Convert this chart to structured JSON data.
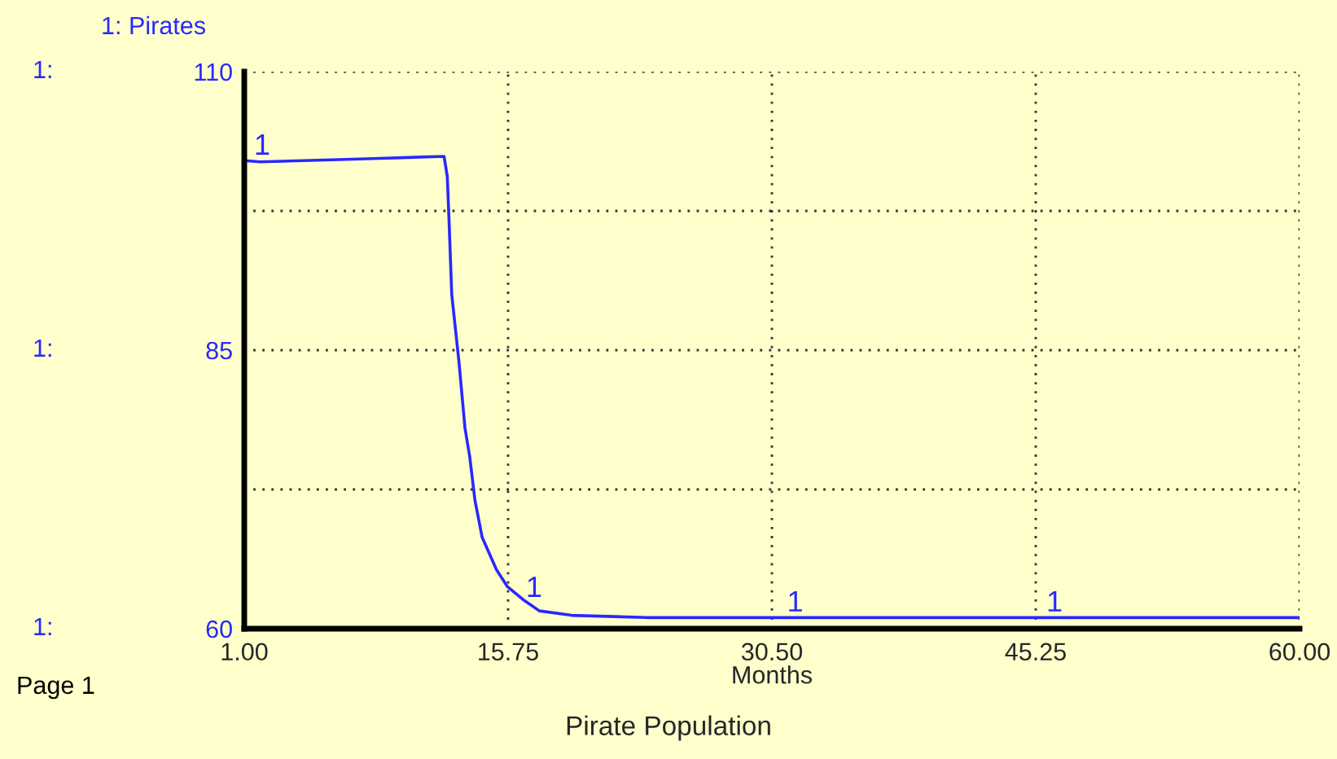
{
  "chart_data": {
    "type": "line",
    "title": "Pirate Population",
    "xlabel": "Months",
    "x": [
      1.18,
      1.9,
      8.2,
      12.17,
      12.35,
      12.44,
      12.6,
      13.0,
      13.34,
      13.6,
      13.9,
      14.3,
      15.1,
      15.7,
      16.6,
      17.5,
      19.3,
      23.5,
      60.0
    ],
    "series": [
      {
        "name": "1: Pirates",
        "color": "#2828ff",
        "values": [
          102.0,
          101.9,
          102.2,
          102.4,
          100.6,
          97.0,
          90.0,
          84.0,
          78.0,
          75.5,
          71.5,
          68.2,
          65.3,
          63.8,
          62.6,
          61.6,
          61.2,
          61.0,
          61.0
        ]
      }
    ],
    "xlim": [
      1.0,
      60.0
    ],
    "xticks": [
      {
        "value": 1.0,
        "label": "1.00"
      },
      {
        "value": 15.75,
        "label": "15.75"
      },
      {
        "value": 30.5,
        "label": "30.50"
      },
      {
        "value": 45.25,
        "label": "45.25"
      },
      {
        "value": 60.0,
        "label": "60.00"
      }
    ],
    "ylim": [
      60,
      110
    ],
    "yticks": [
      60,
      {
        "value": 72.5,
        "label": null
      },
      85,
      {
        "value": 97.5,
        "label": null
      },
      110
    ],
    "grid": true,
    "line_style": "solid",
    "marker": "none",
    "legend": false,
    "annotations": [
      "1:",
      "1:",
      "1:",
      "Page 1",
      {
        "text": "1",
        "x": 2.0,
        "y": 102.0
      },
      {
        "text": "1",
        "x": 17.2,
        "y": 62.3
      },
      {
        "text": "1",
        "x": 31.8,
        "y": 61.0
      },
      {
        "text": "1",
        "x": 46.3,
        "y": 61.0
      }
    ]
  }
}
